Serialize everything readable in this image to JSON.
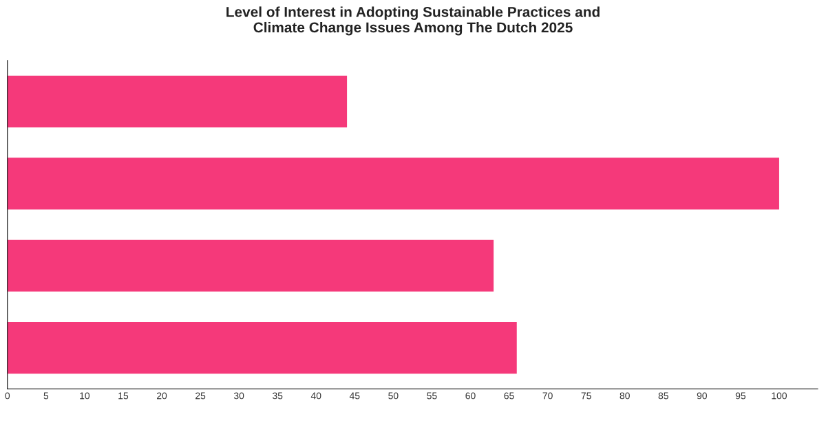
{
  "chart_data": {
    "type": "bar",
    "orientation": "horizontal",
    "title": "Level of Interest in Adopting Sustainable Practices and\nClimate Change Issues Among The Dutch 2025",
    "categories": [
      null,
      null,
      null,
      null
    ],
    "values": [
      44,
      100,
      63,
      66
    ],
    "color": "#f5397a",
    "xlim": [
      0,
      105
    ],
    "xticks": [
      0,
      5,
      10,
      15,
      20,
      25,
      30,
      35,
      40,
      45,
      50,
      55,
      60,
      65,
      70,
      75,
      80,
      85,
      90,
      95,
      100
    ],
    "tick_labels": "x",
    "grid": false,
    "legend": false
  }
}
